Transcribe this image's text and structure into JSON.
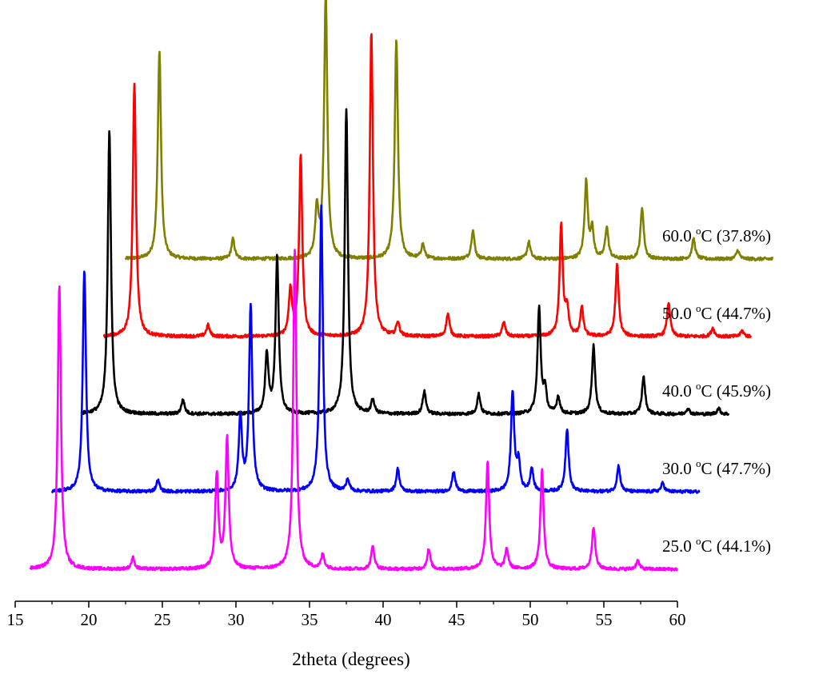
{
  "chart_data": {
    "type": "line",
    "title": "",
    "xlabel": "2theta (degrees)",
    "ylabel": "",
    "xlim": [
      15,
      60
    ],
    "x_ticks": [
      15,
      20,
      25,
      30,
      35,
      40,
      45,
      50,
      55,
      60
    ],
    "y_axis_shown": false,
    "grid": false,
    "legend": "inline labels to the right of each trace",
    "series": [
      {
        "name": "25.0 °C (44.1%)",
        "label_temp": "25.0",
        "label_unit": "C",
        "label_pct": "(44.1%)",
        "color": "#ff00ff",
        "offset": 0,
        "x_range": [
          16.0,
          60.0
        ],
        "peaks": [
          {
            "x": 18.0,
            "h": 100
          },
          {
            "x": 23.0,
            "h": 4
          },
          {
            "x": 28.7,
            "h": 33
          },
          {
            "x": 29.4,
            "h": 46
          },
          {
            "x": 34.0,
            "h": 112
          },
          {
            "x": 35.9,
            "h": 5
          },
          {
            "x": 39.3,
            "h": 8
          },
          {
            "x": 43.1,
            "h": 7
          },
          {
            "x": 47.1,
            "h": 38
          },
          {
            "x": 48.4,
            "h": 7
          },
          {
            "x": 50.8,
            "h": 35
          },
          {
            "x": 54.3,
            "h": 15
          },
          {
            "x": 57.3,
            "h": 3
          }
        ]
      },
      {
        "name": "30.0 °C (47.7%)",
        "label_temp": "30.0",
        "label_unit": "C",
        "label_pct": "(47.7%)",
        "color": "#0000ff",
        "offset": 1,
        "x_range": [
          17.5,
          61.5
        ],
        "peaks": [
          {
            "x": 19.7,
            "h": 78
          },
          {
            "x": 24.7,
            "h": 4
          },
          {
            "x": 30.3,
            "h": 26
          },
          {
            "x": 31.0,
            "h": 65
          },
          {
            "x": 35.8,
            "h": 100
          },
          {
            "x": 37.6,
            "h": 4
          },
          {
            "x": 41.0,
            "h": 8
          },
          {
            "x": 44.8,
            "h": 7
          },
          {
            "x": 48.8,
            "h": 35
          },
          {
            "x": 49.2,
            "h": 10
          },
          {
            "x": 50.1,
            "h": 8
          },
          {
            "x": 52.5,
            "h": 22
          },
          {
            "x": 56.0,
            "h": 9
          },
          {
            "x": 59.0,
            "h": 3
          }
        ]
      },
      {
        "name": "40.0 °C (45.9%)",
        "label_temp": "40.0",
        "label_unit": "C",
        "label_pct": "(45.9%)",
        "color": "#000000",
        "offset": 2,
        "x_range": [
          19.5,
          63.5
        ],
        "peaks": [
          {
            "x": 21.4,
            "h": 100
          },
          {
            "x": 26.4,
            "h": 5
          },
          {
            "x": 32.1,
            "h": 21
          },
          {
            "x": 32.8,
            "h": 55
          },
          {
            "x": 37.5,
            "h": 107
          },
          {
            "x": 39.3,
            "h": 5
          },
          {
            "x": 42.8,
            "h": 8
          },
          {
            "x": 46.5,
            "h": 7
          },
          {
            "x": 50.6,
            "h": 37
          },
          {
            "x": 51.0,
            "h": 8
          },
          {
            "x": 51.9,
            "h": 6
          },
          {
            "x": 54.3,
            "h": 24
          },
          {
            "x": 57.7,
            "h": 13
          },
          {
            "x": 60.7,
            "h": 2
          },
          {
            "x": 62.8,
            "h": 2
          }
        ]
      },
      {
        "name": "50.0 °C (44.7%)",
        "label_temp": "50.0",
        "label_unit": "C",
        "label_pct": "(44.7%)",
        "color": "#ff0000",
        "offset": 3,
        "x_range": [
          21.0,
          65.0
        ],
        "peaks": [
          {
            "x": 23.1,
            "h": 89
          },
          {
            "x": 28.1,
            "h": 4
          },
          {
            "x": 33.7,
            "h": 16
          },
          {
            "x": 34.4,
            "h": 63
          },
          {
            "x": 39.2,
            "h": 107
          },
          {
            "x": 41.0,
            "h": 5
          },
          {
            "x": 44.4,
            "h": 8
          },
          {
            "x": 48.2,
            "h": 5
          },
          {
            "x": 52.1,
            "h": 39
          },
          {
            "x": 52.5,
            "h": 9
          },
          {
            "x": 53.5,
            "h": 10
          },
          {
            "x": 55.9,
            "h": 25
          },
          {
            "x": 59.4,
            "h": 12
          },
          {
            "x": 62.4,
            "h": 3
          },
          {
            "x": 64.4,
            "h": 2
          }
        ]
      },
      {
        "name": "60.0 °C (37.8%)",
        "label_temp": "60.0",
        "label_unit": "C",
        "label_pct": "(37.8%)",
        "color": "#808000",
        "offset": 4,
        "x_range": [
          22.5,
          66.5
        ],
        "peaks": [
          {
            "x": 24.8,
            "h": 73
          },
          {
            "x": 29.8,
            "h": 7
          },
          {
            "x": 35.5,
            "h": 17
          },
          {
            "x": 36.1,
            "h": 93
          },
          {
            "x": 40.9,
            "h": 77
          },
          {
            "x": 42.7,
            "h": 5
          },
          {
            "x": 46.1,
            "h": 10
          },
          {
            "x": 49.9,
            "h": 6
          },
          {
            "x": 53.8,
            "h": 27
          },
          {
            "x": 54.2,
            "h": 10
          },
          {
            "x": 55.2,
            "h": 11
          },
          {
            "x": 57.6,
            "h": 18
          },
          {
            "x": 61.1,
            "h": 7
          },
          {
            "x": 64.1,
            "h": 3
          }
        ]
      }
    ]
  }
}
